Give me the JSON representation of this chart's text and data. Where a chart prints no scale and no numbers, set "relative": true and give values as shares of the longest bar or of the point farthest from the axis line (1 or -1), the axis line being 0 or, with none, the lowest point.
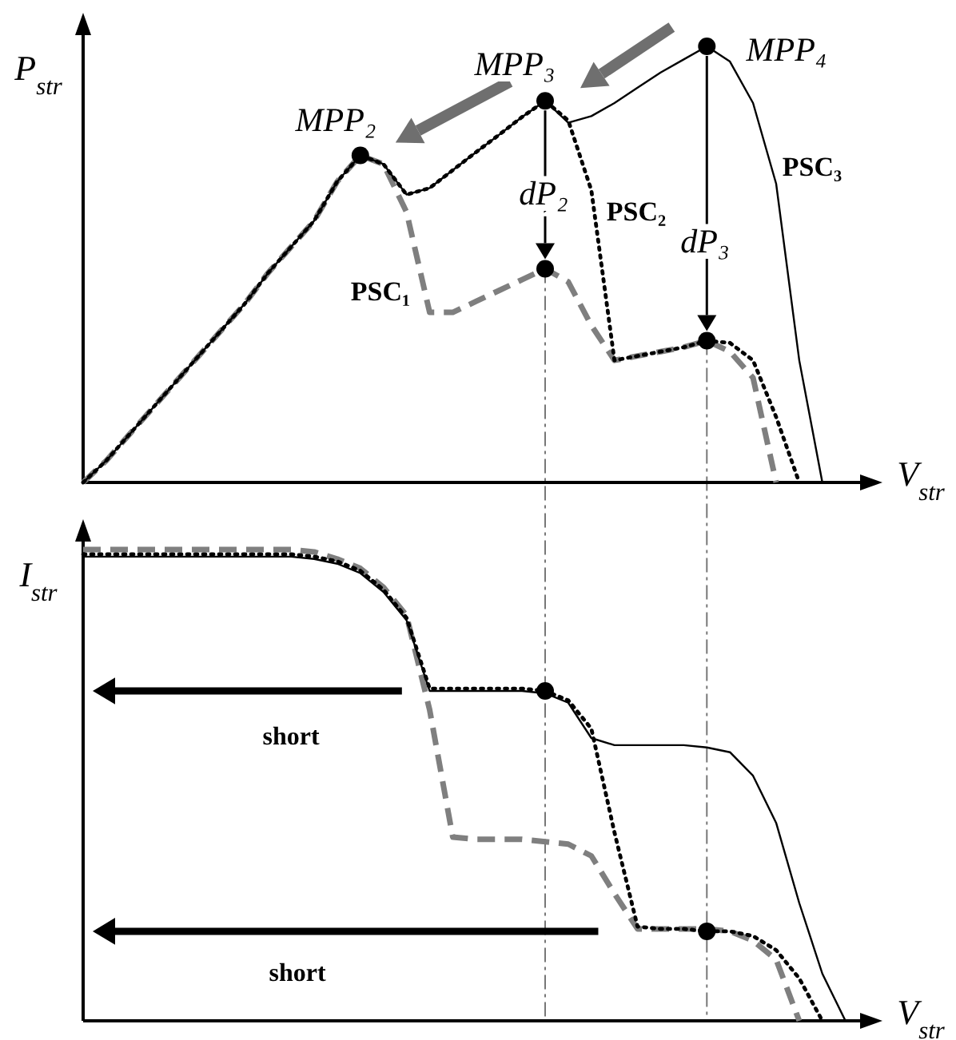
{
  "chart_data": [
    {
      "type": "line",
      "relative": true,
      "xlabel": "V$_{str}$",
      "ylabel": "P$_{str}$",
      "categories": [
        null,
        null,
        null,
        null,
        null,
        null,
        null,
        null,
        null,
        null,
        null,
        null,
        null,
        null,
        null,
        null,
        null,
        null,
        null,
        null,
        null,
        null,
        null,
        null,
        null,
        null,
        null,
        null,
        null,
        null,
        null,
        null,
        null,
        null,
        null
      ],
      "series": [
        {
          "name": "PSC₁",
          "color": "#7f7f7f",
          "line_style": "dashed",
          "values": [
            0,
            0.05,
            0.11,
            0.17,
            0.23,
            0.29,
            0.35,
            0.41,
            0.48,
            0.54,
            0.6,
            0.69,
            0.75,
            0.73,
            0.62,
            0.39,
            0.39,
            0.415,
            0.44,
            0.465,
            0.49,
            0.46,
            0.36,
            0.28,
            0.29,
            0.3,
            0.31,
            0.325,
            0.3,
            0.24,
            0,
            null,
            null,
            null,
            null
          ]
        },
        {
          "name": "PSC₂",
          "color": "#000000",
          "line_style": "dotted",
          "values": [
            0,
            0.05,
            0.11,
            0.17,
            0.23,
            0.29,
            0.35,
            0.41,
            0.48,
            0.54,
            0.6,
            0.69,
            0.75,
            0.73,
            0.66,
            0.675,
            0.716,
            0.757,
            0.797,
            0.838,
            0.875,
            0.83,
            0.67,
            0.28,
            0.29,
            0.3,
            0.31,
            0.325,
            0.32,
            0.28,
            0.15,
            0,
            null,
            null,
            null
          ]
        },
        {
          "name": "PSC₃",
          "color": "#000000",
          "line_style": "solid",
          "values": [
            0,
            0.05,
            0.11,
            0.17,
            0.23,
            0.29,
            0.35,
            0.41,
            0.48,
            0.54,
            0.6,
            0.69,
            0.75,
            0.73,
            0.66,
            0.675,
            0.716,
            0.757,
            0.797,
            0.838,
            0.875,
            0.825,
            0.84,
            0.87,
            0.905,
            0.94,
            0.97,
            1,
            0.965,
            0.87,
            0.685,
            0.28,
            0,
            null,
            null
          ]
        }
      ],
      "annotations": [
        "MPP₂",
        "MPP₃",
        "MPP₄",
        "dP₂",
        "dP₃"
      ]
    },
    {
      "type": "line",
      "relative": true,
      "xlabel": "V$_{str}$",
      "ylabel": "I$_{str}$",
      "categories": [
        null,
        null,
        null,
        null,
        null,
        null,
        null,
        null,
        null,
        null,
        null,
        null,
        null,
        null,
        null,
        null,
        null,
        null,
        null,
        null,
        null,
        null,
        null,
        null,
        null,
        null,
        null,
        null,
        null,
        null,
        null,
        null,
        null,
        null,
        null
      ],
      "series": [
        {
          "color": "#7f7f7f",
          "line_style": "dashed",
          "values": [
            1,
            1,
            1,
            1,
            1,
            1,
            1,
            1,
            1,
            1,
            0.995,
            0.98,
            0.96,
            0.92,
            0.86,
            0.66,
            0.39,
            0.385,
            0.385,
            0.385,
            0.38,
            0.375,
            0.35,
            0.27,
            0.195,
            0.195,
            0.195,
            0.195,
            0.19,
            0.17,
            0.13,
            0,
            null,
            null,
            null
          ]
        },
        {
          "color": "#000000",
          "line_style": "dotted",
          "values": [
            0.99,
            0.99,
            0.99,
            0.99,
            0.99,
            0.99,
            0.99,
            0.99,
            0.99,
            0.99,
            0.985,
            0.975,
            0.955,
            0.915,
            0.855,
            0.705,
            0.705,
            0.705,
            0.705,
            0.705,
            0.7,
            0.68,
            0.62,
            0.4,
            0.2,
            0.195,
            0.195,
            0.19,
            0.19,
            0.18,
            0.15,
            0.09,
            0,
            null,
            null
          ]
        },
        {
          "color": "#000000",
          "line_style": "solid",
          "values": [
            0.985,
            0.985,
            0.985,
            0.985,
            0.985,
            0.985,
            0.985,
            0.985,
            0.985,
            0.985,
            0.98,
            0.97,
            0.95,
            0.91,
            0.85,
            0.7,
            0.7,
            0.7,
            0.7,
            0.7,
            0.695,
            0.675,
            0.6,
            0.585,
            0.585,
            0.585,
            0.585,
            0.58,
            0.57,
            0.52,
            0.42,
            0.25,
            0.1,
            0,
            null
          ]
        }
      ],
      "annotations": [
        "short",
        "short"
      ]
    }
  ]
}
